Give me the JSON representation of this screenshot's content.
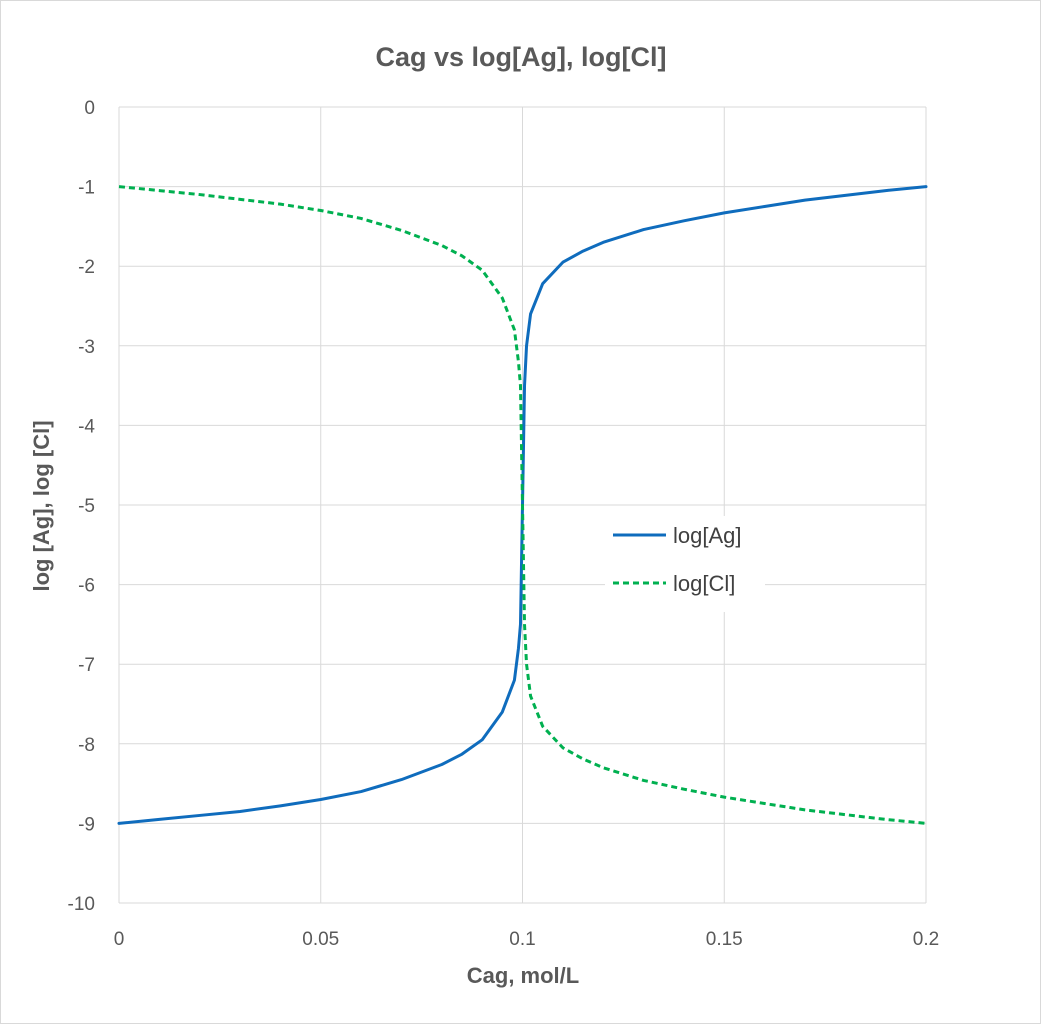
{
  "chart_data": {
    "type": "line",
    "title": "Cag vs log[Ag], log[Cl]",
    "xlabel": "Cag, mol/L",
    "ylabel": "log [Ag], log [Cl]",
    "xlim": [
      0,
      0.2
    ],
    "ylim": [
      -10,
      0
    ],
    "xticks": [
      0,
      0.05,
      0.1,
      0.15,
      0.2
    ],
    "xtick_labels": [
      "0",
      "0.05",
      "0.1",
      "0.15",
      "0.2"
    ],
    "yticks": [
      0,
      -1,
      -2,
      -3,
      -4,
      -5,
      -6,
      -7,
      -8,
      -9,
      -10
    ],
    "ytick_labels": [
      "0",
      "-1",
      "-2",
      "-3",
      "-4",
      "-5",
      "-6",
      "-7",
      "-8",
      "-9",
      "-10"
    ],
    "grid": true,
    "legend_position": "right-center",
    "series": [
      {
        "name": "log[Ag]",
        "color": "#0f6cbd",
        "style": "solid",
        "x": [
          0,
          0.01,
          0.02,
          0.03,
          0.04,
          0.05,
          0.06,
          0.07,
          0.08,
          0.085,
          0.09,
          0.095,
          0.098,
          0.099,
          0.0995,
          0.1,
          0.1005,
          0.101,
          0.102,
          0.105,
          0.11,
          0.115,
          0.12,
          0.13,
          0.14,
          0.15,
          0.16,
          0.17,
          0.18,
          0.19,
          0.2
        ],
        "y": [
          -9,
          -8.95,
          -8.9,
          -8.85,
          -8.78,
          -8.7,
          -8.6,
          -8.45,
          -8.26,
          -8.13,
          -7.95,
          -7.6,
          -7.2,
          -6.8,
          -6.5,
          -5,
          -3.5,
          -3,
          -2.6,
          -2.22,
          -1.95,
          -1.81,
          -1.7,
          -1.54,
          -1.43,
          -1.33,
          -1.25,
          -1.17,
          -1.11,
          -1.05,
          -1
        ]
      },
      {
        "name": "log[Cl]",
        "color": "#00b050",
        "style": "dashed",
        "x": [
          0,
          0.01,
          0.02,
          0.03,
          0.04,
          0.05,
          0.06,
          0.07,
          0.08,
          0.085,
          0.09,
          0.095,
          0.098,
          0.099,
          0.0995,
          0.1,
          0.1005,
          0.101,
          0.102,
          0.105,
          0.11,
          0.115,
          0.12,
          0.13,
          0.14,
          0.15,
          0.16,
          0.17,
          0.18,
          0.19,
          0.2
        ],
        "y": [
          -1,
          -1.05,
          -1.1,
          -1.16,
          -1.22,
          -1.3,
          -1.4,
          -1.55,
          -1.74,
          -1.87,
          -2.05,
          -2.4,
          -2.8,
          -3.2,
          -3.5,
          -5,
          -6.5,
          -7,
          -7.4,
          -7.78,
          -8.05,
          -8.19,
          -8.3,
          -8.46,
          -8.57,
          -8.67,
          -8.75,
          -8.83,
          -8.89,
          -8.95,
          -9
        ]
      }
    ]
  }
}
